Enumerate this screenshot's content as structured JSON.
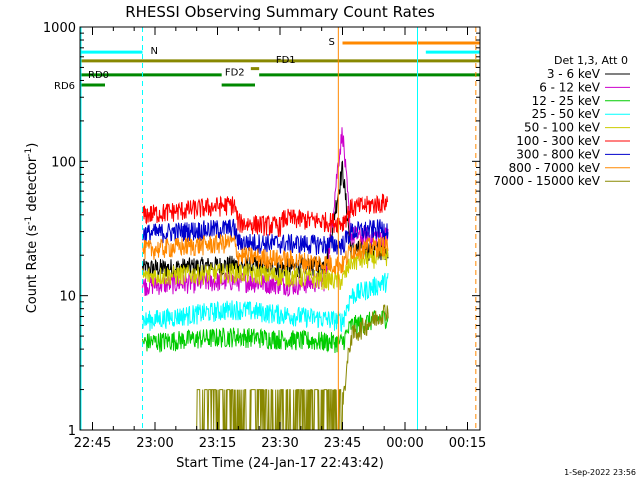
{
  "chart_data": {
    "type": "line",
    "title": "RHESSI Observing Summary Count Rates",
    "xlabel": "Start Time (24-Jan-17 22:43:42)",
    "ylabel_main": "Count Rate (s",
    "ylabel_sup1": "-1",
    "ylabel_mid": " detector",
    "ylabel_sup2": "-1",
    "ylabel_end": ")",
    "y_scale": "log",
    "ylim": [
      1,
      1000
    ],
    "xlim_minutes": [
      -3,
      93
    ],
    "x_tick_labels": [
      "22:45",
      "23:00",
      "23:15",
      "23:30",
      "23:45",
      "00:00",
      "00:15"
    ],
    "x_tick_minutes": [
      0,
      15,
      30,
      45,
      60,
      75,
      90
    ],
    "y_tick_labels": [
      "1",
      "10",
      "100",
      "1000"
    ],
    "y_tick_values": [
      1,
      10,
      100,
      1000
    ],
    "legend_title": "Det 1,3, Att 0",
    "legend_position": "right",
    "footer_date": "1-Sep-2022 23:56",
    "series": [
      {
        "name": "3 - 6 keV",
        "color": "#000000",
        "start": 12,
        "end": 71,
        "segments": [
          [
            12,
            16
          ],
          [
            16,
            16
          ],
          [
            34,
            17
          ],
          [
            45,
            16
          ],
          [
            56,
            17
          ],
          [
            60,
            90
          ],
          [
            62,
            22
          ],
          [
            71,
            22
          ]
        ]
      },
      {
        "name": "6 - 12 keV",
        "color": "#cc00cc",
        "start": 12,
        "end": 71,
        "segments": [
          [
            12,
            12
          ],
          [
            34,
            13
          ],
          [
            48,
            12
          ],
          [
            56,
            13
          ],
          [
            59,
            100
          ],
          [
            60,
            170
          ],
          [
            62,
            28
          ],
          [
            71,
            28
          ]
        ]
      },
      {
        "name": "12 - 25 keV",
        "color": "#00cc00",
        "start": 12,
        "end": 71,
        "segments": [
          [
            12,
            4.5
          ],
          [
            34,
            5
          ],
          [
            60,
            4.5
          ],
          [
            62,
            6
          ],
          [
            71,
            7
          ]
        ]
      },
      {
        "name": "25 - 50 keV",
        "color": "#00ffff",
        "start": 12,
        "end": 71,
        "segments": [
          [
            12,
            6.5
          ],
          [
            34,
            8
          ],
          [
            60,
            6.5
          ],
          [
            62,
            10
          ],
          [
            71,
            13
          ]
        ]
      },
      {
        "name": "50 - 100 keV",
        "color": "#cccc00",
        "start": 12,
        "end": 71,
        "segments": [
          [
            12,
            14
          ],
          [
            34,
            15
          ],
          [
            60,
            13
          ],
          [
            62,
            18
          ],
          [
            71,
            20
          ]
        ]
      },
      {
        "name": "100 - 300 keV",
        "color": "#ff0000",
        "start": 12,
        "end": 71,
        "segments": [
          [
            12,
            40
          ],
          [
            34,
            48
          ],
          [
            35,
            35
          ],
          [
            45,
            33
          ],
          [
            46,
            38
          ],
          [
            60,
            35
          ],
          [
            62,
            45
          ],
          [
            71,
            50
          ]
        ]
      },
      {
        "name": "300 - 800 keV",
        "color": "#0000cc",
        "start": 12,
        "end": 71,
        "segments": [
          [
            12,
            29
          ],
          [
            34,
            32
          ],
          [
            35,
            25
          ],
          [
            60,
            24
          ],
          [
            62,
            30
          ],
          [
            71,
            32
          ]
        ]
      },
      {
        "name": "800 - 7000 keV",
        "color": "#ff8800",
        "start": 12,
        "end": 71,
        "segments": [
          [
            12,
            22
          ],
          [
            34,
            25
          ],
          [
            35,
            20
          ],
          [
            60,
            17
          ],
          [
            62,
            22
          ],
          [
            71,
            24
          ]
        ]
      },
      {
        "name": "7000 - 15000 keV",
        "color": "#888800",
        "start": 25,
        "end": 71,
        "segments": [
          [
            25,
            1.5
          ],
          [
            45,
            1.5
          ],
          [
            60,
            1.6
          ],
          [
            62,
            5
          ],
          [
            71,
            8
          ]
        ]
      }
    ],
    "flags": [
      {
        "label": "N",
        "color": "#00ffff",
        "value": 650,
        "ranges": [
          [
            -3,
            12
          ],
          [
            80,
            93
          ]
        ]
      },
      {
        "label": "FD1",
        "color": "#888800",
        "value": 560,
        "ranges": [
          [
            -3,
            93
          ]
        ]
      },
      {
        "label": "FD2",
        "color": "#888800",
        "value": 490,
        "ranges": [
          [
            38,
            40
          ]
        ]
      },
      {
        "label": "RD0",
        "color": "#008800",
        "value": 440,
        "ranges": [
          [
            -3,
            31
          ],
          [
            40,
            93
          ]
        ]
      },
      {
        "label": "RD6",
        "color": "#008800",
        "value": 370,
        "ranges": [
          [
            -3,
            3
          ],
          [
            31,
            39
          ]
        ]
      },
      {
        "label": "S",
        "color": "#ff8800",
        "value": 760,
        "ranges": [
          [
            60,
            93
          ]
        ]
      }
    ],
    "vertical_lines": [
      {
        "minute": -3,
        "color": "#00ffff",
        "style": "solid"
      },
      {
        "minute": 12,
        "color": "#00ffff",
        "style": "dashed"
      },
      {
        "minute": 59,
        "color": "#ff8800",
        "style": "solid"
      },
      {
        "minute": 78,
        "color": "#00ffff",
        "style": "solid"
      },
      {
        "minute": 92,
        "color": "#ff8800",
        "style": "dashed"
      }
    ]
  }
}
